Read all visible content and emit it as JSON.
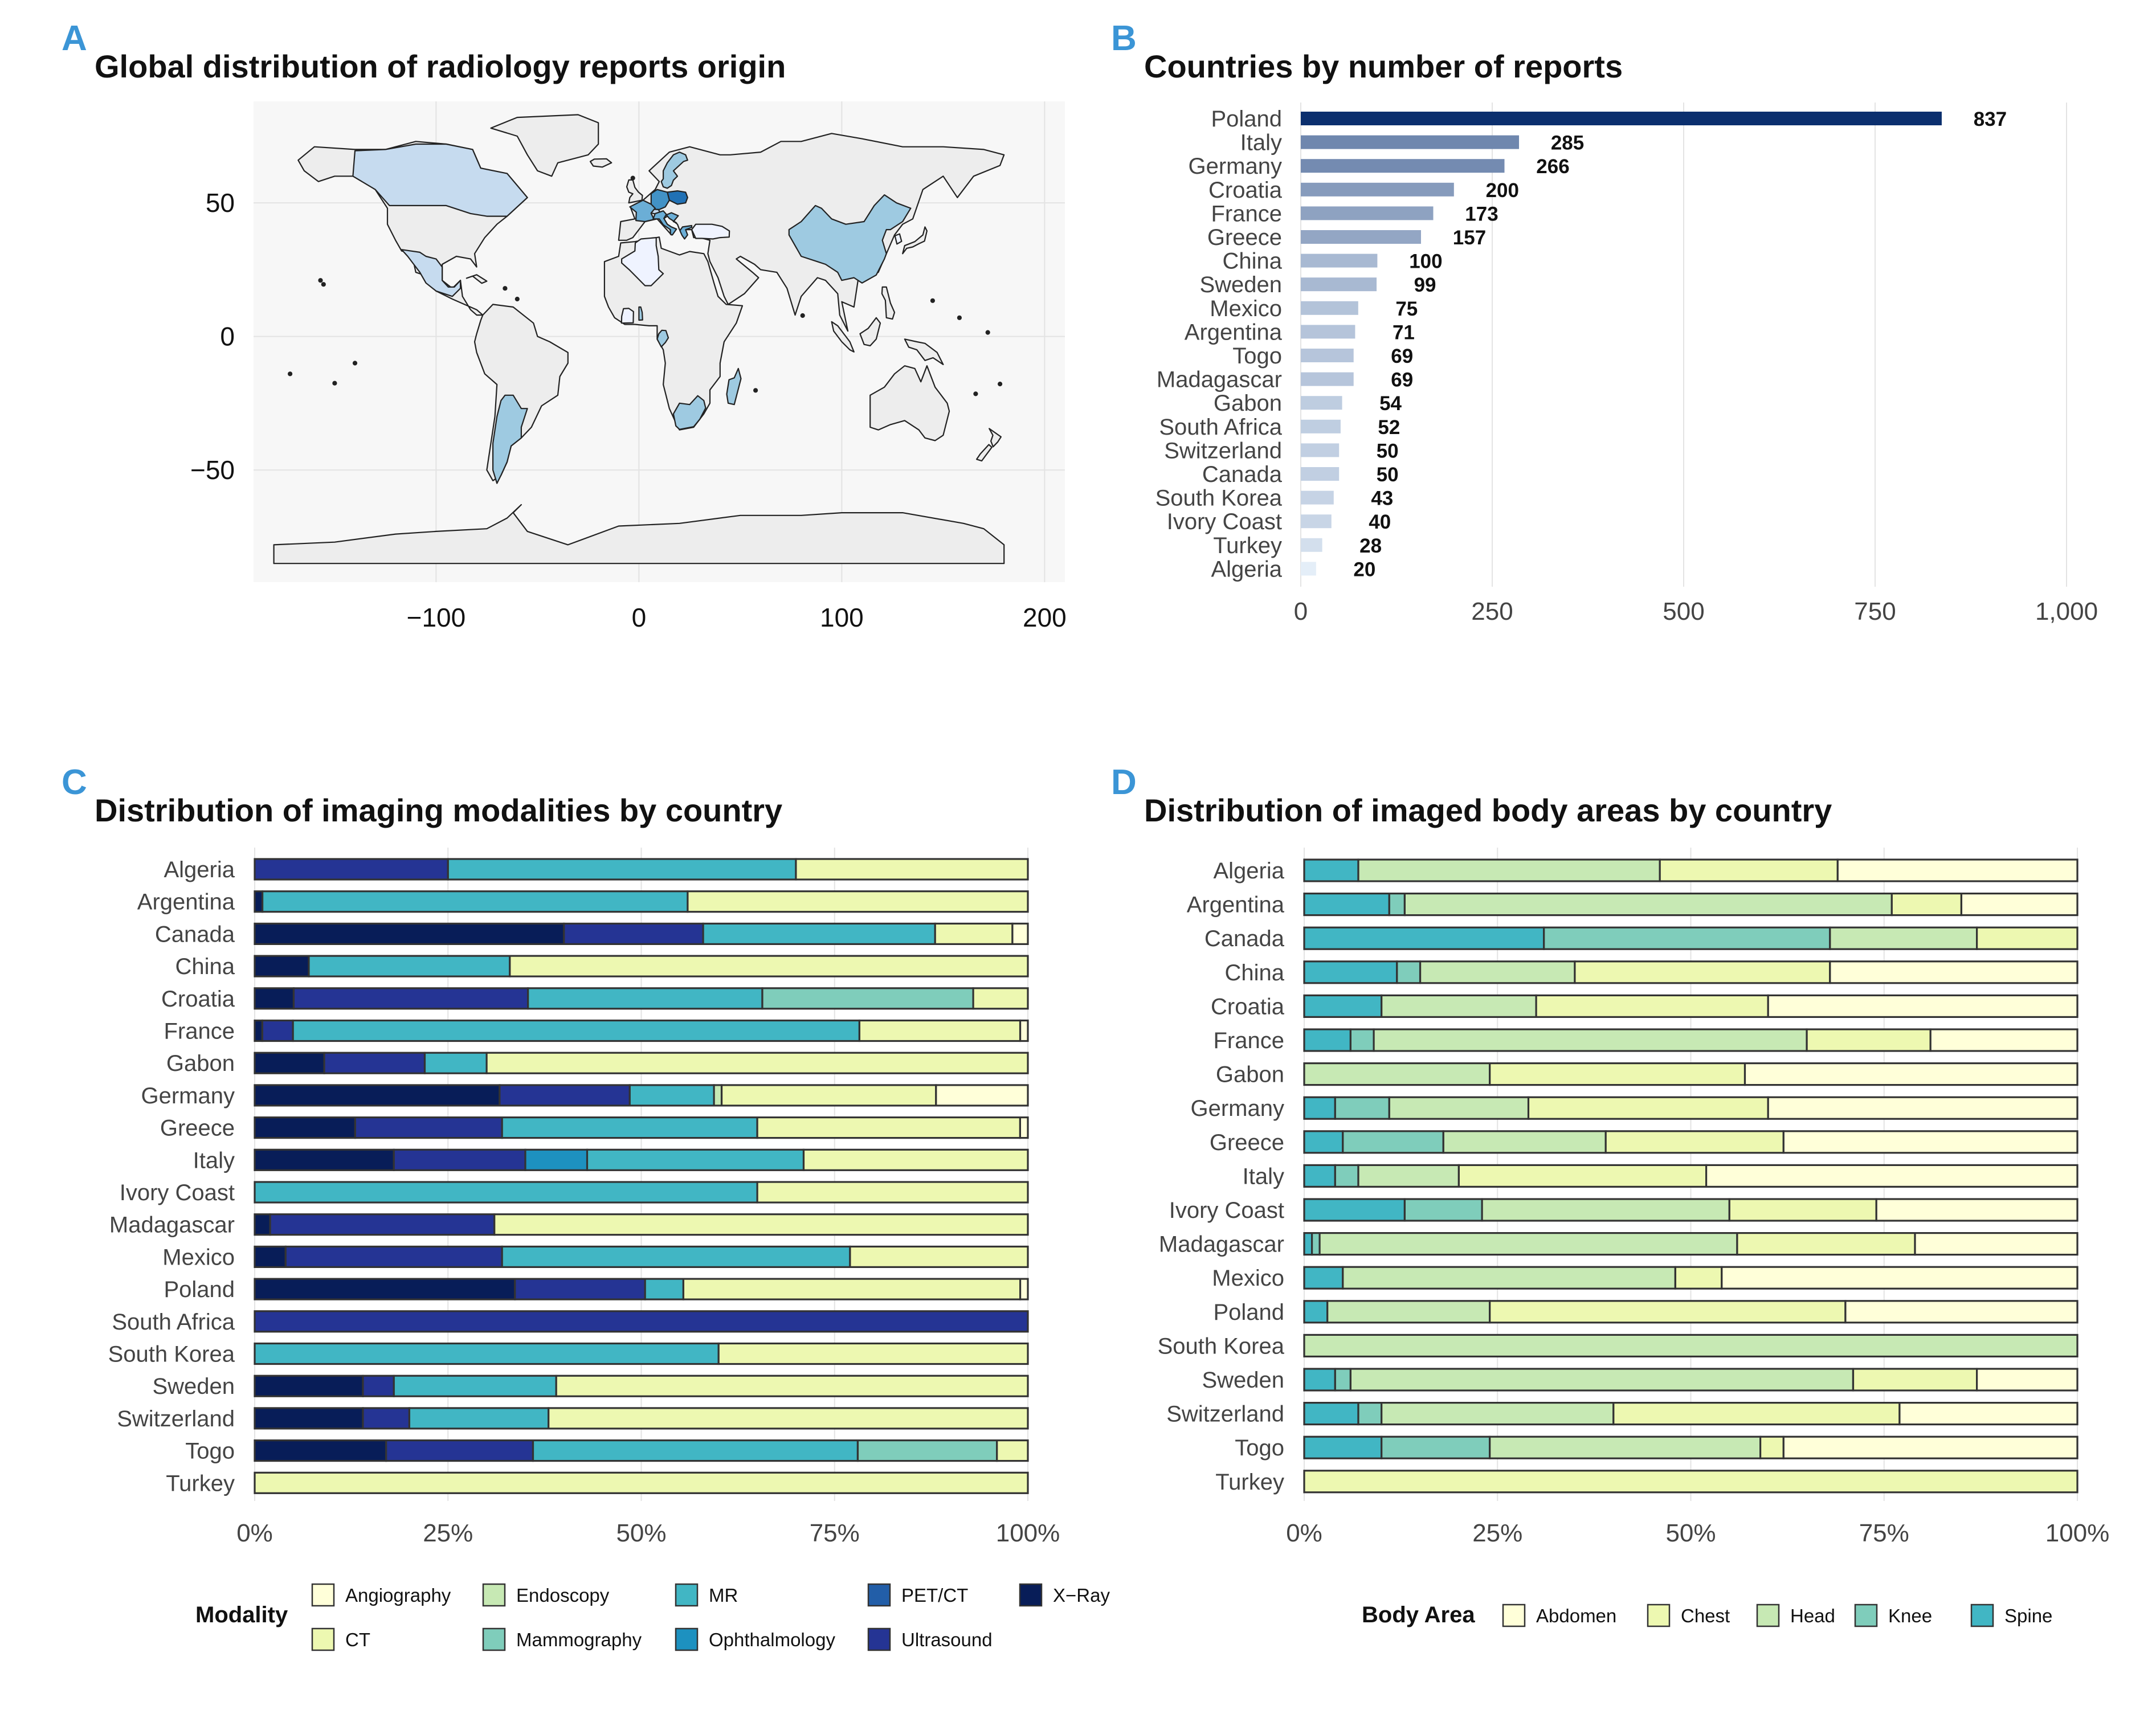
{
  "panels": {
    "A": {
      "letter": "A",
      "title": "Global distribution of radiology reports origin"
    },
    "B": {
      "letter": "B",
      "title": "Countries by number of reports"
    },
    "C": {
      "letter": "C",
      "title": "Distribution of imaging modalities by country"
    },
    "D": {
      "letter": "D",
      "title": "Distribution of imaged body areas by country"
    }
  },
  "colors": {
    "map_background": "#f7f7f7",
    "land_default": "#ededed",
    "bar_light": "#e4eef8",
    "bar_dark": "#0b2f6e",
    "grid": "#e3e3e3"
  },
  "chart_data": [
    {
      "panel": "A",
      "type": "choropleth",
      "title": "Global distribution of radiology reports origin",
      "xlim": [
        -190,
        210
      ],
      "ylim": [
        -92,
        88
      ],
      "xticks": [
        -100,
        0,
        100,
        200
      ],
      "xtick_labels": [
        "−100",
        "0",
        "100",
        "200"
      ],
      "yticks": [
        50,
        0,
        -50
      ],
      "ytick_labels": [
        "50",
        "0",
        "−50"
      ],
      "highlighted_countries": [
        "Poland",
        "Italy",
        "Germany",
        "Croatia",
        "France",
        "Greece",
        "China",
        "Sweden",
        "Mexico",
        "Argentina",
        "Togo",
        "Madagascar",
        "Gabon",
        "South Africa",
        "Switzerland",
        "Canada",
        "South Korea",
        "Ivory Coast",
        "Turkey",
        "Algeria"
      ]
    },
    {
      "panel": "B",
      "type": "bar",
      "orientation": "horizontal",
      "title": "Countries by number of reports",
      "categories": [
        "Poland",
        "Italy",
        "Germany",
        "Croatia",
        "France",
        "Greece",
        "China",
        "Sweden",
        "Mexico",
        "Argentina",
        "Togo",
        "Madagascar",
        "Gabon",
        "South Africa",
        "Switzerland",
        "Canada",
        "South Korea",
        "Ivory Coast",
        "Turkey",
        "Algeria"
      ],
      "values": [
        837,
        285,
        266,
        200,
        173,
        157,
        100,
        99,
        75,
        71,
        69,
        69,
        54,
        52,
        50,
        50,
        43,
        40,
        28,
        20
      ],
      "xlim": [
        0,
        1000
      ],
      "xticks": [
        0,
        250,
        500,
        750,
        1000
      ],
      "xtick_labels": [
        "0",
        "250",
        "500",
        "750",
        "1,000"
      ]
    },
    {
      "panel": "C",
      "type": "bar",
      "stacked": "percent",
      "orientation": "horizontal",
      "title": "Distribution of imaging modalities by country",
      "legend_title": "Modality",
      "legend_position": "bottom",
      "categories": [
        "Algeria",
        "Argentina",
        "Canada",
        "China",
        "Croatia",
        "France",
        "Gabon",
        "Germany",
        "Greece",
        "Italy",
        "Ivory Coast",
        "Madagascar",
        "Mexico",
        "Poland",
        "South Africa",
        "South Korea",
        "Sweden",
        "Switzerland",
        "Togo",
        "Turkey"
      ],
      "stack_order": [
        "X−Ray",
        "Ultrasound",
        "PET/CT",
        "Ophthalmology",
        "MR",
        "Mammography",
        "Endoscopy",
        "CT",
        "Angiography"
      ],
      "series": [
        {
          "name": "Angiography",
          "color": "#ffffd9",
          "values": [
            0,
            0,
            2,
            0,
            0,
            1,
            0,
            12,
            1,
            0,
            0,
            0,
            0,
            1,
            0,
            0,
            0,
            0,
            0,
            0
          ]
        },
        {
          "name": "CT",
          "color": "#edf8b1",
          "values": [
            30,
            44,
            10,
            67,
            7,
            21,
            70,
            28,
            34,
            29,
            35,
            69,
            23,
            44,
            0,
            40,
            61,
            62,
            4,
            100
          ]
        },
        {
          "name": "Endoscopy",
          "color": "#c7e9b4",
          "values": [
            0,
            0,
            0,
            0,
            0,
            0,
            0,
            1,
            0,
            0,
            0,
            0,
            0,
            0,
            0,
            0,
            0,
            0,
            0,
            0
          ]
        },
        {
          "name": "Mammography",
          "color": "#7fcdbb",
          "values": [
            0,
            0,
            0,
            0,
            27,
            0,
            0,
            0,
            0,
            0,
            0,
            0,
            0,
            0,
            0,
            0,
            0,
            0,
            18,
            0
          ]
        },
        {
          "name": "MR",
          "color": "#41b6c4",
          "values": [
            45,
            55,
            30,
            26,
            30,
            74,
            8,
            11,
            33,
            28,
            65,
            0,
            45,
            5,
            0,
            60,
            21,
            18,
            42,
            0
          ]
        },
        {
          "name": "Ophthalmology",
          "color": "#1d91c0",
          "values": [
            0,
            0,
            0,
            0,
            0,
            0,
            0,
            0,
            0,
            8,
            0,
            0,
            0,
            0,
            0,
            0,
            0,
            0,
            0,
            0
          ]
        },
        {
          "name": "PET/CT",
          "color": "#225ea8",
          "values": [
            0,
            0,
            0,
            0,
            0,
            0,
            0,
            0,
            0,
            0,
            0,
            0,
            0,
            0,
            0,
            0,
            0,
            0,
            0,
            0
          ]
        },
        {
          "name": "Ultrasound",
          "color": "#253494",
          "values": [
            25,
            0,
            18,
            0,
            30,
            4,
            13,
            17,
            19,
            17,
            0,
            29,
            28,
            17,
            100,
            0,
            4,
            6,
            19,
            0
          ]
        },
        {
          "name": "X−Ray",
          "color": "#081d58",
          "values": [
            0,
            1,
            40,
            7,
            5,
            1,
            9,
            32,
            13,
            18,
            0,
            2,
            4,
            34,
            0,
            0,
            14,
            14,
            17,
            0
          ]
        }
      ],
      "xlim": [
        0,
        100
      ],
      "xtick_labels": [
        "0%",
        "25%",
        "50%",
        "75%",
        "100%"
      ]
    },
    {
      "panel": "D",
      "type": "bar",
      "stacked": "percent",
      "orientation": "horizontal",
      "title": "Distribution of imaged body areas by country",
      "legend_title": "Body Area",
      "legend_position": "bottom",
      "categories": [
        "Algeria",
        "Argentina",
        "Canada",
        "China",
        "Croatia",
        "France",
        "Gabon",
        "Germany",
        "Greece",
        "Italy",
        "Ivory Coast",
        "Madagascar",
        "Mexico",
        "Poland",
        "South Korea",
        "Sweden",
        "Switzerland",
        "Togo",
        "Turkey"
      ],
      "stack_order": [
        "Spine",
        "Knee",
        "Head",
        "Chest",
        "Abdomen"
      ],
      "series": [
        {
          "name": "Abdomen",
          "color": "#ffffd9",
          "values": [
            31,
            15,
            0,
            32,
            40,
            19,
            43,
            40,
            38,
            48,
            26,
            21,
            46,
            30,
            0,
            13,
            23,
            38,
            0
          ]
        },
        {
          "name": "Chest",
          "color": "#edf8b1",
          "values": [
            23,
            9,
            13,
            33,
            30,
            16,
            33,
            31,
            23,
            32,
            19,
            23,
            6,
            46,
            0,
            16,
            37,
            3,
            100
          ]
        },
        {
          "name": "Head",
          "color": "#c7e9b4",
          "values": [
            39,
            63,
            19,
            20,
            20,
            56,
            24,
            18,
            21,
            13,
            32,
            54,
            43,
            21,
            100,
            65,
            30,
            35,
            0
          ]
        },
        {
          "name": "Knee",
          "color": "#7fcdbb",
          "values": [
            0,
            2,
            37,
            3,
            0,
            3,
            0,
            7,
            13,
            3,
            10,
            1,
            0,
            0,
            0,
            2,
            3,
            14,
            0
          ]
        },
        {
          "name": "Spine",
          "color": "#41b6c4",
          "values": [
            7,
            11,
            31,
            12,
            10,
            6,
            0,
            4,
            5,
            4,
            13,
            1,
            5,
            3,
            0,
            4,
            7,
            10,
            0
          ]
        }
      ],
      "xlim": [
        0,
        100
      ],
      "xtick_labels": [
        "0%",
        "25%",
        "50%",
        "75%",
        "100%"
      ]
    }
  ]
}
